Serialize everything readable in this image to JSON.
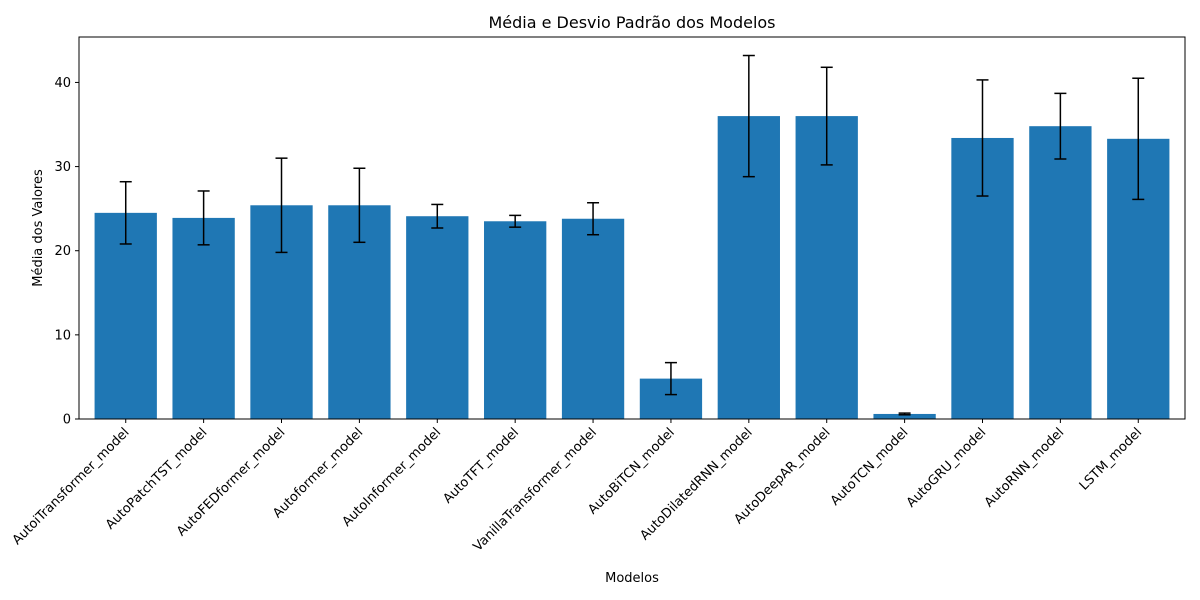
{
  "chart_data": {
    "type": "bar",
    "title": "Média e Desvio Padrão dos Modelos",
    "xlabel": "Modelos",
    "ylabel": "Média dos Valores",
    "ylim": [
      0,
      45.4
    ],
    "yticks": [
      0,
      10,
      20,
      30,
      40
    ],
    "grid": false,
    "bar_color": "#1f77b4",
    "error_color": "#000000",
    "categories": [
      "AutoiTransformer_model",
      "AutoPatchTST_model",
      "AutoFEDformer_model",
      "Autoformer_model",
      "AutoInformer_model",
      "AutoTFT_model",
      "VanillaTransformer_model",
      "AutoBiTCN_model",
      "AutoDilatedRNN_model",
      "AutoDeepAR_model",
      "AutoTCN_model",
      "AutoGRU_model",
      "AutoRNN_model",
      "LSTM_model"
    ],
    "values": [
      24.5,
      23.9,
      25.4,
      25.4,
      24.1,
      23.5,
      23.8,
      4.8,
      36.0,
      36.0,
      0.6,
      33.4,
      34.8,
      33.3
    ],
    "errors": [
      3.7,
      3.2,
      5.6,
      4.4,
      1.4,
      0.7,
      1.9,
      1.9,
      7.2,
      5.8,
      0.1,
      6.9,
      3.9,
      7.2
    ]
  }
}
